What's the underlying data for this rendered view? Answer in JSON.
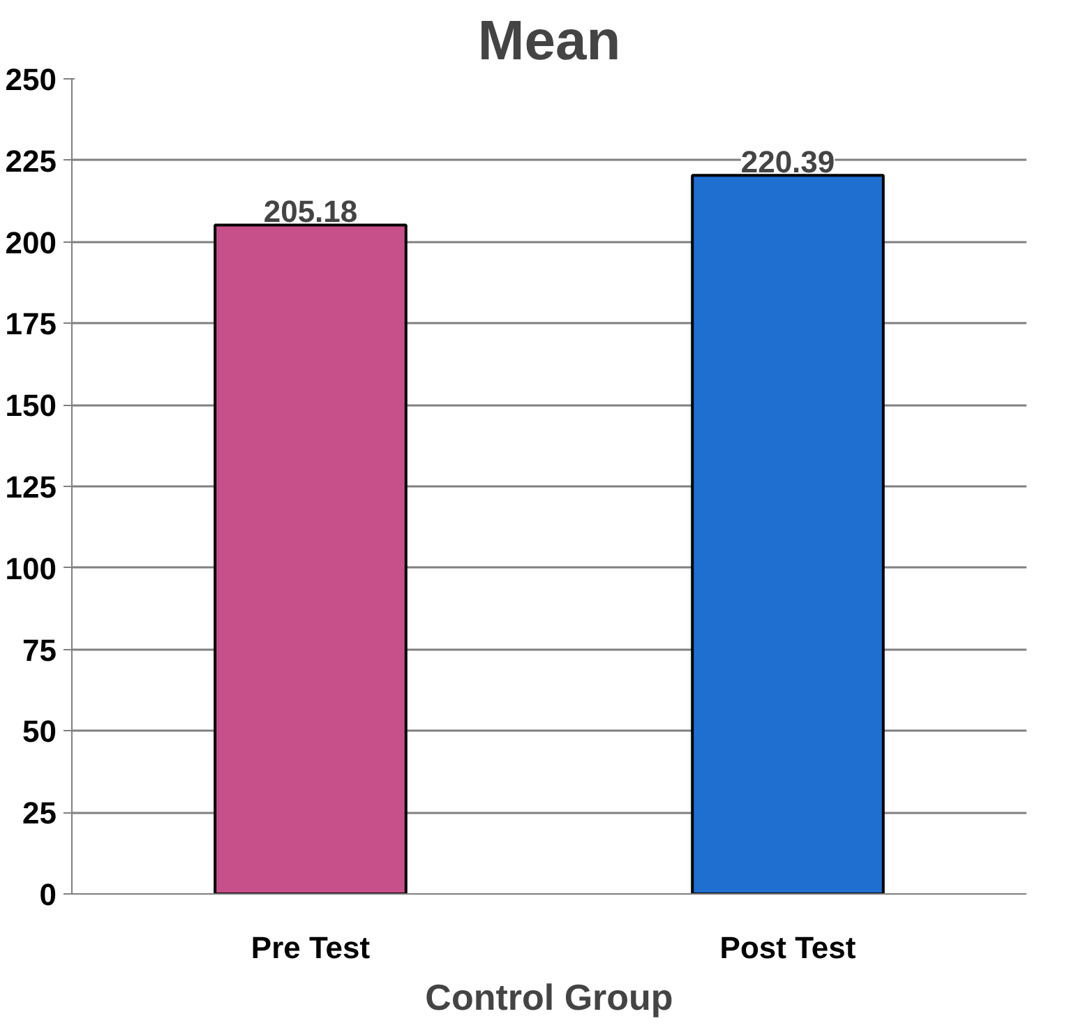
{
  "chart_data": {
    "type": "bar",
    "title": "Mean",
    "xlabel": "Control Group",
    "categories": [
      "Pre Test",
      "Post Test"
    ],
    "values": [
      205.18,
      220.39
    ],
    "colors": [
      "#c8508a",
      "#1e6fd0"
    ],
    "ylim": [
      0,
      250
    ],
    "yticks": [
      0,
      25,
      50,
      75,
      100,
      125,
      150,
      175,
      200,
      225,
      250
    ],
    "grid": "y",
    "data_labels": true
  }
}
